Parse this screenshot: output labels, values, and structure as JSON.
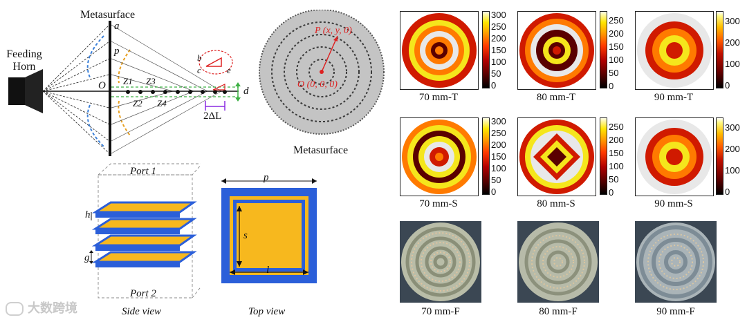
{
  "schematic": {
    "feeding_horn_label": [
      "Feeding",
      "Horn"
    ],
    "metasurface_label": "Metasurface",
    "a": "a",
    "p": "p",
    "O": "O",
    "z1": "Z1",
    "z2": "Z2",
    "z3": "Z3",
    "z4": "Z4",
    "b": "b",
    "c": "c",
    "e": "e",
    "d": "d",
    "delta_l": "2ΔL"
  },
  "metasurface_view": {
    "caption": "Metasurface",
    "point_p": "P (x, y, 0)",
    "point_o": "O (0, 0, 0)"
  },
  "unit_cell": {
    "port1": "Port 1",
    "port2": "Port 2",
    "h": "h",
    "g": "g",
    "side_caption": "Side view",
    "top_p": "p",
    "top_s": "s",
    "top_l": "l",
    "top_caption": "Top view"
  },
  "maps": {
    "row_T": [
      "70 mm-T",
      "80 mm-T",
      "90 mm-T"
    ],
    "row_S": [
      "70 mm-S",
      "80 mm-S",
      "90 mm-S"
    ],
    "row_F": [
      "70 mm-F",
      "80 mm-F",
      "90 mm-F"
    ],
    "cbar_a": [
      "300",
      "250",
      "200",
      "150",
      "100",
      "50",
      "0"
    ],
    "cbar_b": [
      "250",
      "200",
      "150",
      "100",
      "50",
      "0"
    ],
    "cbar_c": [
      "300",
      "200",
      "100",
      "0"
    ]
  },
  "watermark": "大数跨境",
  "colors": {
    "ring_dark": "#5a0000",
    "ring_red": "#d01a00",
    "ring_orange": "#ff7a00",
    "ring_yellow": "#f5e61c",
    "ring_white": "#e8e8e8",
    "cell_blue": "#2b5fd9",
    "cell_gold": "#f7b81e"
  }
}
